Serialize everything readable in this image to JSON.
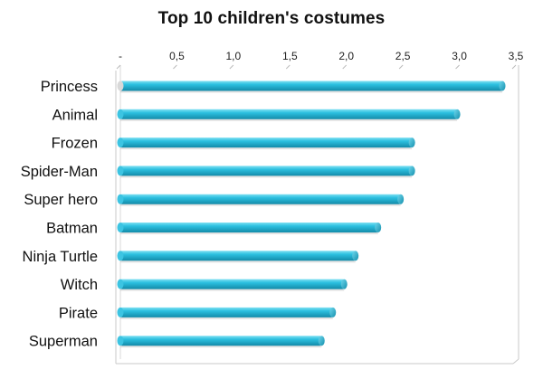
{
  "chart_data": {
    "type": "bar",
    "orientation": "horizontal",
    "title": "Top 10 children's costumes",
    "categories": [
      "Princess",
      "Animal",
      "Frozen",
      "Spider-Man",
      "Super hero",
      "Batman",
      "Ninja Turtle",
      "Witch",
      "Pirate",
      "Superman"
    ],
    "values": [
      3.38,
      2.98,
      2.58,
      2.58,
      2.48,
      2.28,
      2.08,
      1.98,
      1.88,
      1.78
    ],
    "xlim": [
      0,
      3.5
    ],
    "x_ticks": [
      "-",
      "0,5",
      "1,0",
      "1,5",
      "2,0",
      "2,5",
      "3,0",
      "3,5"
    ],
    "x_axis_position": "top",
    "grid": false,
    "legend": "none",
    "bar_color": "#2bb5d4"
  }
}
